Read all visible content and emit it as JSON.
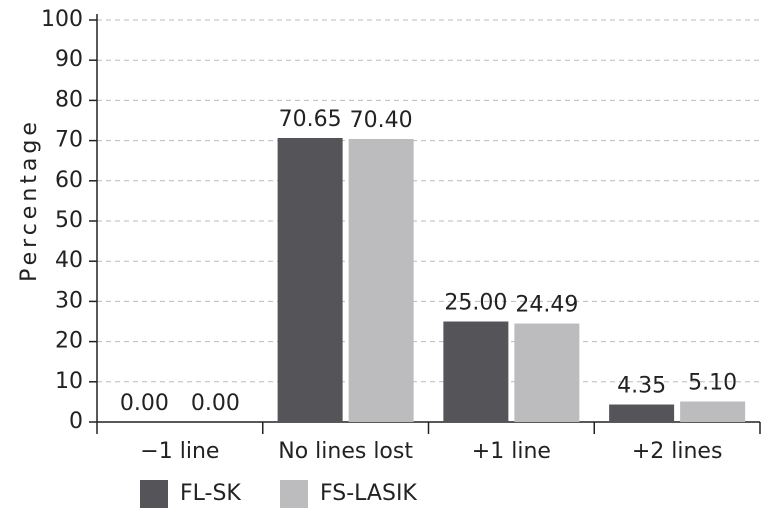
{
  "chart_data": {
    "type": "bar",
    "y_label": "Percentage",
    "categories": [
      "−1 line",
      "No lines lost",
      "+1 line",
      "+2 lines"
    ],
    "series": [
      {
        "name": "FL-SK",
        "color": "#555559",
        "values": [
          0,
          70.65,
          25,
          4.35
        ],
        "value_labels": [
          "0.00",
          "70.65",
          "25.00",
          "4.35"
        ]
      },
      {
        "name": "FS-LASIK",
        "color": "#bcbcbe",
        "values": [
          0,
          70.4,
          24.49,
          5.1
        ],
        "value_labels": [
          "0.00",
          "70.40",
          "24.49",
          "5.10"
        ]
      }
    ],
    "ylim": [
      0,
      100
    ],
    "yticks": [
      0,
      10,
      20,
      30,
      40,
      50,
      60,
      70,
      80,
      90,
      100
    ],
    "grid": true,
    "legend": "bottom-left"
  }
}
